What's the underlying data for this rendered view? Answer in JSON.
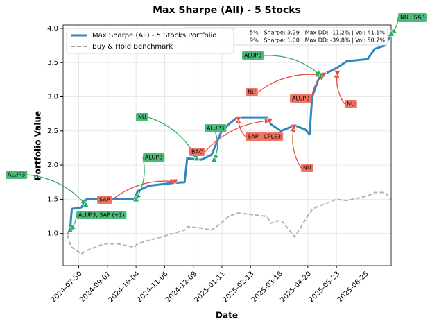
{
  "chart_data": {
    "type": "line",
    "title": "Max Sharpe (All) - 5 Stocks",
    "x_label": "Date",
    "y_label": "Portfolio Value",
    "x": [
      "2024-07-17",
      "2024-07-20",
      "2024-07-22",
      "2024-08-02",
      "2024-08-08",
      "2024-08-28",
      "2024-09-13",
      "2024-10-02",
      "2024-10-06",
      "2024-10-19",
      "2024-11-16",
      "2024-11-29",
      "2024-12-02",
      "2024-12-18",
      "2024-12-30",
      "2025-01-10",
      "2025-01-19",
      "2025-01-29",
      "2025-03-04",
      "2025-03-08",
      "2025-03-20",
      "2025-04-05",
      "2025-04-17",
      "2025-04-22",
      "2025-04-25",
      "2025-05-02",
      "2025-05-07",
      "2025-05-23",
      "2025-06-04",
      "2025-06-28",
      "2025-07-06",
      "2025-07-18",
      "2025-07-25"
    ],
    "series": [
      {
        "name": "Max Sharpe (All) - 5 Stocks Portfolio",
        "color": "#2e86c1",
        "style": "solid",
        "values": [
          1.0,
          1.05,
          1.36,
          1.38,
          1.5,
          1.5,
          1.51,
          1.5,
          1.62,
          1.7,
          1.74,
          1.75,
          2.1,
          2.08,
          2.15,
          2.48,
          2.6,
          2.7,
          2.7,
          2.6,
          2.5,
          2.58,
          2.52,
          2.45,
          3.0,
          3.25,
          3.32,
          3.42,
          3.52,
          3.55,
          3.7,
          3.75,
          3.92
        ]
      },
      {
        "name": "Buy & Hold Benchmark",
        "color": "#95a5a6",
        "style": "dashed",
        "values": [
          0.98,
          0.85,
          0.8,
          0.7,
          0.75,
          0.85,
          0.85,
          0.8,
          0.85,
          0.9,
          1.0,
          1.05,
          1.1,
          1.08,
          1.05,
          1.15,
          1.25,
          1.3,
          1.25,
          1.15,
          1.2,
          0.95,
          1.2,
          1.3,
          1.35,
          1.4,
          1.42,
          1.5,
          1.48,
          1.55,
          1.6,
          1.6,
          1.5
        ]
      }
    ],
    "xlim": [
      "2024-07-12",
      "2025-07-25"
    ],
    "xticks": [
      "2024-07-30",
      "2024-09-01",
      "2024-10-04",
      "2024-11-06",
      "2024-12-09",
      "2025-01-11",
      "2025-02-13",
      "2025-03-18",
      "2025-04-20",
      "2025-05-23",
      "2025-06-25"
    ],
    "ylim": [
      0.53,
      4.05
    ],
    "yticks": [
      {
        "value": 1,
        "label": "1.0"
      },
      {
        "value": 1.5,
        "label": "1.5"
      },
      {
        "value": 2,
        "label": "2.0"
      },
      {
        "value": 2.5,
        "label": "2.5"
      },
      {
        "value": 3,
        "label": "3.0"
      },
      {
        "value": 3.5,
        "label": "3.5"
      },
      {
        "value": 4,
        "label": "4.0"
      }
    ],
    "grid": true,
    "legend": "upper left",
    "stats": [
      "5% | Sharpe: 3.29 | Max DD: -11.2% | Vol: 41.1%",
      "9% | Sharpe: 1.00 | Max DD: -39.8% | Vol: 50.7%"
    ],
    "trades": [
      {
        "label": "ALUP3, SAP   (+1)",
        "kind": "buy",
        "date": "2024-07-20",
        "value": 1.05
      },
      {
        "label": "ALUP3",
        "kind": "buy",
        "date": "2024-08-07",
        "value": 1.42
      },
      {
        "label": "SAP",
        "kind": "sell",
        "date": "2024-11-18",
        "value": 1.76
      },
      {
        "label": "ALUP3",
        "kind": "buy",
        "date": "2024-10-04",
        "value": 1.5
      },
      {
        "label": "NU",
        "kind": "buy",
        "date": "2024-12-13",
        "value": 2.1
      },
      {
        "label": "ALUP3",
        "kind": "buy",
        "date": "2025-01-02",
        "value": 2.08
      },
      {
        "label": "BAC",
        "kind": "sell",
        "date": "2025-03-07",
        "value": 2.65
      },
      {
        "label": "SAP  , CPLE3",
        "kind": "sell",
        "date": "2025-01-30",
        "value": 2.68
      },
      {
        "label": "NU",
        "kind": "sell",
        "date": "2025-04-04",
        "value": 2.56
      },
      {
        "label": "NU",
        "kind": "sell",
        "date": "2025-05-05",
        "value": 3.32
      },
      {
        "label": "ALUP3",
        "kind": "sell",
        "date": "2025-05-08",
        "value": 3.32
      },
      {
        "label": "NU",
        "kind": "sell",
        "date": "2025-05-24",
        "value": 3.35
      },
      {
        "label": "ALUP3",
        "kind": "buy",
        "date": "2025-05-05",
        "value": 3.31
      },
      {
        "label": "NU  , SAP",
        "kind": "buy",
        "date": "2025-07-25",
        "value": 3.92
      }
    ]
  }
}
